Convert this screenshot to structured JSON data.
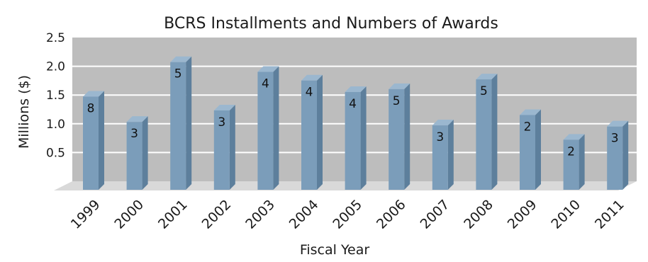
{
  "chart_data": {
    "type": "bar",
    "title": "BCRS Installments and Numbers of Awards",
    "xlabel": "Fiscal Year",
    "ylabel": "Millions ($)",
    "ylim": [
      0,
      2.5
    ],
    "yticks": [
      "0.5",
      "1.0",
      "1.5",
      "2.0",
      "2.5"
    ],
    "grid": true,
    "categories": [
      "1999",
      "2000",
      "2001",
      "2002",
      "2003",
      "2004",
      "2005",
      "2006",
      "2007",
      "2008",
      "2009",
      "2010",
      "2011"
    ],
    "values": [
      1.62,
      1.18,
      2.22,
      1.38,
      2.05,
      1.9,
      1.7,
      1.75,
      1.12,
      1.92,
      1.3,
      0.87,
      1.1
    ],
    "award_counts": [
      "8",
      "3",
      "5",
      "3",
      "4",
      "4",
      "4",
      "5",
      "3",
      "5",
      "2",
      "2",
      "3"
    ],
    "colors": {
      "bar_front": "#7b9dba",
      "bar_side": "#5d7f9c",
      "bar_top": "#9bb7cf",
      "wall": "#bdbdbd",
      "floor": "#d9d9d9",
      "grid": "#ffffff"
    }
  }
}
